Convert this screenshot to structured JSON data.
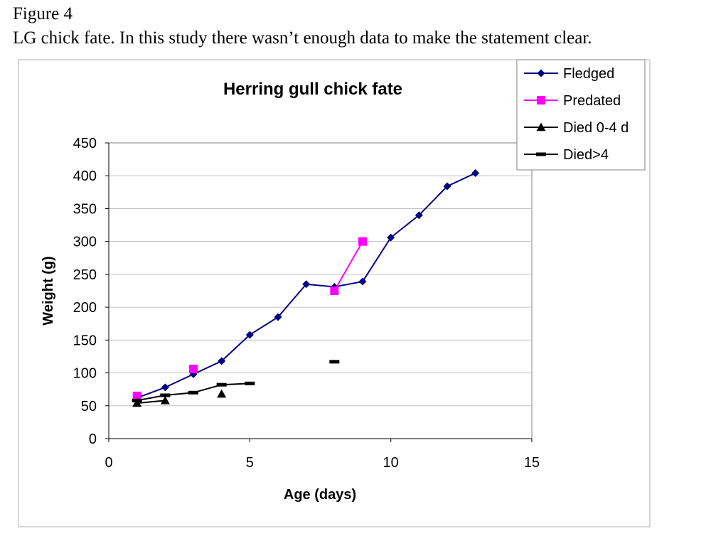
{
  "figure": {
    "label": "Figure 4",
    "caption": "LG chick fate. In this study there wasn’t enough data to make the statement clear."
  },
  "chart_data": {
    "type": "line",
    "title": "Herring gull chick fate",
    "xlabel": "Age (days)",
    "ylabel": "Weight (g)",
    "xlim": [
      0,
      15
    ],
    "ylim": [
      0,
      450
    ],
    "xticks": [
      0,
      5,
      10,
      15
    ],
    "yticks": [
      0,
      50,
      100,
      150,
      200,
      250,
      300,
      350,
      400,
      450
    ],
    "grid": "horizontal",
    "legend_position": "top-right",
    "series": [
      {
        "name": "Fledged",
        "color": "#000080",
        "marker": "diamond",
        "connected": true,
        "points": [
          [
            1,
            62
          ],
          [
            2,
            78
          ],
          [
            3,
            98
          ],
          [
            4,
            118
          ],
          [
            5,
            158
          ],
          [
            6,
            185
          ],
          [
            7,
            235
          ],
          [
            8,
            231
          ],
          [
            9,
            239
          ],
          [
            10,
            306
          ],
          [
            11,
            340
          ],
          [
            12,
            384
          ],
          [
            13,
            404
          ]
        ]
      },
      {
        "name": "Predated",
        "color": "#FF00FF",
        "marker": "square",
        "connected": "partial",
        "points": [
          [
            1,
            65
          ],
          [
            3,
            106
          ],
          [
            8,
            225
          ],
          [
            9,
            300
          ]
        ],
        "line_segments": [
          [
            [
              8,
              225
            ],
            [
              9,
              300
            ]
          ]
        ]
      },
      {
        "name": "Died 0-4 d",
        "color": "#000000",
        "marker": "triangle",
        "connected": "partial",
        "points": [
          [
            1,
            54
          ],
          [
            2,
            58
          ],
          [
            4,
            68
          ]
        ],
        "line_segments": [
          [
            [
              1,
              54
            ],
            [
              2,
              58
            ]
          ]
        ]
      },
      {
        "name": "Died>4",
        "color": "#000000",
        "marker": "dash",
        "connected": "partial",
        "points": [
          [
            1,
            58
          ],
          [
            2,
            66
          ],
          [
            3,
            70
          ],
          [
            4,
            82
          ],
          [
            5,
            84
          ],
          [
            8,
            117
          ]
        ],
        "line_segments": [
          [
            [
              1,
              58
            ],
            [
              2,
              66
            ],
            [
              3,
              70
            ],
            [
              4,
              82
            ],
            [
              5,
              84
            ]
          ]
        ]
      }
    ]
  }
}
